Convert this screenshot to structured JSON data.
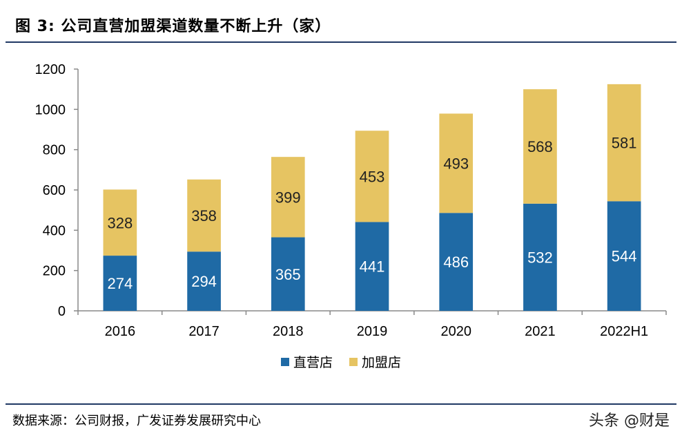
{
  "header": {
    "title": "图 3: 公司直营加盟渠道数量不断上升（家）"
  },
  "footer": {
    "source": "数据来源：公司财报，广发证券发展研究中心",
    "watermark": "头条 @财是"
  },
  "colors": {
    "direct": "#1f6aa5",
    "franchise": "#e6c462",
    "axis": "#888888",
    "rule": "#1f3864"
  },
  "chart_data": {
    "type": "bar",
    "stacked": true,
    "title": "公司直营加盟渠道数量不断上升（家）",
    "categories": [
      "2016",
      "2017",
      "2018",
      "2019",
      "2020",
      "2021",
      "2022H1"
    ],
    "series": [
      {
        "name": "直营店",
        "values": [
          274,
          294,
          365,
          441,
          486,
          532,
          544
        ]
      },
      {
        "name": "加盟店",
        "values": [
          328,
          358,
          399,
          453,
          493,
          568,
          581
        ]
      }
    ],
    "yticks": [
      "0",
      "200",
      "400",
      "600",
      "800",
      "1000",
      "1200"
    ],
    "ylim": [
      0,
      1200
    ],
    "xlabel": "",
    "ylabel": "",
    "legend": "bottom-center",
    "grid": false
  }
}
